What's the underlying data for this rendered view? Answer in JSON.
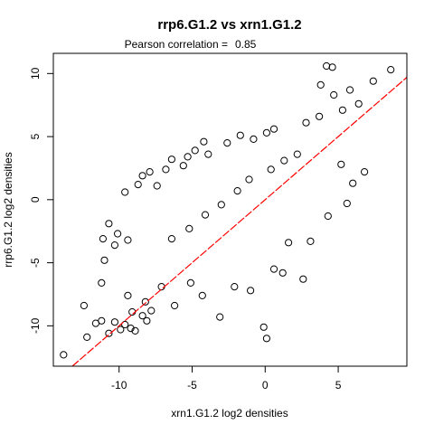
{
  "chart_data": {
    "type": "scatter",
    "title": "rrp6.G1.2 vs xrn1.G1.2",
    "subtitle_label": "Pearson correlation =",
    "subtitle_value": "0.85",
    "xlabel": "xrn1.G1.2 log2 densities",
    "ylabel": "rrp6.G1.2 log2 densities",
    "xlim": [
      -14.5,
      9.7
    ],
    "ylim": [
      -13.2,
      11.6
    ],
    "x_ticks": [
      -10,
      -5,
      0,
      5
    ],
    "y_ticks": [
      -10,
      -5,
      0,
      5,
      10
    ],
    "x_tick_labels": [
      "-10",
      "-5",
      "0",
      "5"
    ],
    "y_tick_labels": [
      "-10",
      "-5",
      "0",
      "5",
      "10"
    ],
    "reference_line": {
      "intercept": 0,
      "slope": 1,
      "color": "#ff0000",
      "style": "dashed"
    },
    "point_color": "#000000",
    "marker": "open-circle",
    "grid": false,
    "legend": "none",
    "points": [
      [
        -13.8,
        -12.3
      ],
      [
        -12.2,
        -10.9
      ],
      [
        -11.2,
        -9.6
      ],
      [
        -11.6,
        -9.8
      ],
      [
        -10.7,
        -10.6
      ],
      [
        -10.3,
        -9.7
      ],
      [
        -9.9,
        -10.3
      ],
      [
        -9.6,
        -9.9
      ],
      [
        -9.2,
        -10.2
      ],
      [
        -8.9,
        -10.4
      ],
      [
        -9.4,
        -7.6
      ],
      [
        -9.1,
        -8.9
      ],
      [
        -8.4,
        -9.2
      ],
      [
        -8.1,
        -9.6
      ],
      [
        -7.8,
        -8.8
      ],
      [
        -12.4,
        -8.4
      ],
      [
        -11.2,
        -6.6
      ],
      [
        -11.1,
        -3.1
      ],
      [
        -11.0,
        -4.8
      ],
      [
        -10.7,
        -1.9
      ],
      [
        -10.3,
        -3.6
      ],
      [
        -10.1,
        -2.7
      ],
      [
        -9.4,
        -3.2
      ],
      [
        -9.6,
        0.6
      ],
      [
        -8.7,
        1.2
      ],
      [
        -8.4,
        1.9
      ],
      [
        -7.9,
        2.2
      ],
      [
        -7.4,
        1.1
      ],
      [
        -6.8,
        2.4
      ],
      [
        -6.4,
        3.2
      ],
      [
        -5.6,
        2.7
      ],
      [
        -5.3,
        3.4
      ],
      [
        -4.8,
        3.9
      ],
      [
        -4.2,
        4.6
      ],
      [
        -3.9,
        3.6
      ],
      [
        -2.6,
        4.5
      ],
      [
        -1.7,
        5.1
      ],
      [
        -0.8,
        4.8
      ],
      [
        0.1,
        5.3
      ],
      [
        0.6,
        5.6
      ],
      [
        -6.4,
        -3.1
      ],
      [
        -5.2,
        -2.3
      ],
      [
        -4.1,
        -1.2
      ],
      [
        -3.0,
        -0.4
      ],
      [
        -1.9,
        0.7
      ],
      [
        -1.1,
        1.6
      ],
      [
        0.4,
        2.4
      ],
      [
        1.3,
        3.1
      ],
      [
        2.2,
        3.6
      ],
      [
        2.8,
        6.1
      ],
      [
        3.7,
        6.6
      ],
      [
        4.7,
        8.3
      ],
      [
        5.3,
        7.1
      ],
      [
        5.8,
        8.7
      ],
      [
        6.4,
        7.6
      ],
      [
        7.4,
        9.4
      ],
      [
        8.6,
        10.3
      ],
      [
        4.6,
        10.5
      ],
      [
        4.2,
        10.6
      ],
      [
        3.8,
        9.1
      ],
      [
        -0.1,
        -10.1
      ],
      [
        0.1,
        -11.0
      ],
      [
        -3.1,
        -9.3
      ],
      [
        -2.1,
        -6.9
      ],
      [
        -1.0,
        -7.2
      ],
      [
        0.6,
        -5.5
      ],
      [
        1.2,
        -5.8
      ],
      [
        2.6,
        -6.3
      ],
      [
        1.6,
        -3.4
      ],
      [
        3.1,
        -3.3
      ],
      [
        4.3,
        -1.3
      ],
      [
        5.6,
        -0.3
      ],
      [
        6.0,
        1.3
      ],
      [
        6.8,
        2.2
      ],
      [
        5.2,
        2.8
      ],
      [
        -4.3,
        -7.6
      ],
      [
        -5.1,
        -6.6
      ],
      [
        -6.2,
        -8.4
      ],
      [
        -7.1,
        -6.9
      ],
      [
        -8.2,
        -8.1
      ]
    ]
  }
}
